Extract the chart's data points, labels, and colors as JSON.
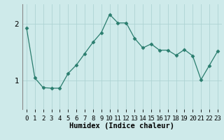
{
  "x": [
    0,
    1,
    2,
    3,
    4,
    5,
    6,
    7,
    8,
    9,
    10,
    11,
    12,
    13,
    14,
    15,
    16,
    17,
    18,
    19,
    20,
    21,
    22,
    23
  ],
  "y": [
    1.93,
    1.05,
    0.88,
    0.87,
    0.87,
    1.13,
    1.28,
    1.48,
    1.68,
    1.85,
    2.17,
    2.02,
    2.02,
    1.75,
    1.58,
    1.65,
    1.54,
    1.54,
    1.45,
    1.55,
    1.44,
    1.02,
    1.27,
    1.52
  ],
  "xlabel": "Humidex (Indice chaleur)",
  "xlim": [
    -0.5,
    23.5
  ],
  "ylim": [
    0.5,
    2.35
  ],
  "yticks": [
    1,
    2
  ],
  "line_color": "#2a7d6e",
  "marker": "D",
  "marker_size": 2.5,
  "bg_color": "#ceeaea",
  "grid_color": "#aed4d4",
  "xlabel_fontsize": 7.5,
  "tick_fontsize": 6.5
}
